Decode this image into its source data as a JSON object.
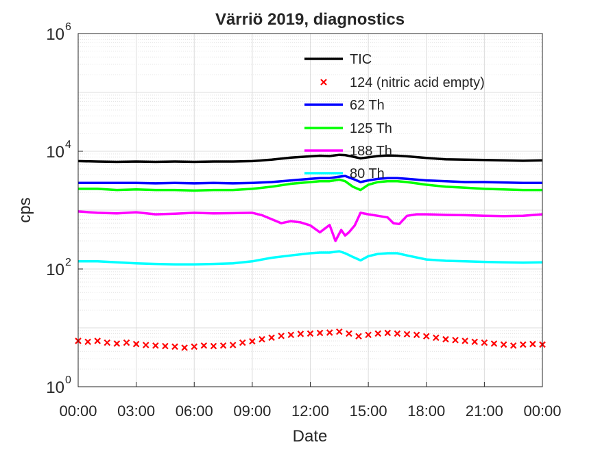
{
  "chart_data": {
    "type": "line",
    "title": "Värriö 2019, diagnostics",
    "xlabel": "Date",
    "ylabel": "cps",
    "yscale": "log",
    "ylim": [
      1,
      1000000
    ],
    "xlim": [
      0,
      24
    ],
    "grid": true,
    "legend_position": "top-right",
    "x_ticks": [
      {
        "pos": 0,
        "label": "00:00"
      },
      {
        "pos": 3,
        "label": "03:00"
      },
      {
        "pos": 6,
        "label": "06:00"
      },
      {
        "pos": 9,
        "label": "09:00"
      },
      {
        "pos": 12,
        "label": "12:00"
      },
      {
        "pos": 15,
        "label": "15:00"
      },
      {
        "pos": 18,
        "label": "18:00"
      },
      {
        "pos": 21,
        "label": "21:00"
      },
      {
        "pos": 24,
        "label": "00:00"
      }
    ],
    "y_ticks": [
      {
        "value": 1,
        "base": "10",
        "exp": "0"
      },
      {
        "value": 100,
        "base": "10",
        "exp": "2"
      },
      {
        "value": 10000,
        "base": "10",
        "exp": "4"
      },
      {
        "value": 1000000,
        "base": "10",
        "exp": "6"
      }
    ],
    "series": [
      {
        "name": "TIC",
        "color": "#000000",
        "style": "line",
        "x": [
          0,
          1,
          2,
          3,
          4,
          5,
          6,
          7,
          8,
          9,
          10,
          11,
          12,
          12.5,
          13,
          13.5,
          13.8,
          14.2,
          14.6,
          15,
          15.5,
          16,
          16.5,
          17,
          18,
          19,
          20,
          21,
          22,
          23,
          24
        ],
        "y": [
          6800,
          6700,
          6600,
          6700,
          6600,
          6700,
          6600,
          6700,
          6700,
          6800,
          7200,
          7800,
          8200,
          8400,
          8300,
          8700,
          8600,
          8100,
          7600,
          7900,
          8300,
          8500,
          8400,
          8200,
          7700,
          7300,
          7200,
          7100,
          7000,
          6900,
          7000
        ]
      },
      {
        "name": "124 (nitric acid empty)",
        "color": "#ff0000",
        "style": "marker",
        "x": [
          0,
          0.5,
          1,
          1.5,
          2,
          2.5,
          3,
          3.5,
          4,
          4.5,
          5,
          5.5,
          6,
          6.5,
          7,
          7.5,
          8,
          8.5,
          9,
          9.5,
          10,
          10.5,
          11,
          11.5,
          12,
          12.5,
          13,
          13.5,
          14,
          14.5,
          15,
          15.5,
          16,
          16.5,
          17,
          17.5,
          18,
          18.5,
          19,
          19.5,
          20,
          20.5,
          21,
          21.5,
          22,
          22.5,
          23,
          23.5,
          24
        ],
        "y": [
          6,
          5.8,
          6,
          5.6,
          5.4,
          5.6,
          5.3,
          5.1,
          5.0,
          4.9,
          4.8,
          4.6,
          4.8,
          5.0,
          4.9,
          5.0,
          5.1,
          5.6,
          5.9,
          6.4,
          6.8,
          7.3,
          7.6,
          7.9,
          8.0,
          8.2,
          8.3,
          8.6,
          8.0,
          7.2,
          7.6,
          8.0,
          8.2,
          8.0,
          7.8,
          7.6,
          7.2,
          6.8,
          6.4,
          6.2,
          6.0,
          5.8,
          5.6,
          5.4,
          5.2,
          5.0,
          5.2,
          5.3,
          5.2
        ]
      },
      {
        "name": "62 Th",
        "color": "#0000ff",
        "style": "line",
        "x": [
          0,
          1,
          2,
          3,
          4,
          5,
          6,
          7,
          8,
          9,
          10,
          11,
          12,
          12.5,
          13,
          13.5,
          13.8,
          14.2,
          14.6,
          15,
          15.5,
          16,
          16.5,
          17,
          18,
          19,
          20,
          21,
          22,
          23,
          24
        ],
        "y": [
          2900,
          2900,
          2900,
          2900,
          2850,
          2900,
          2850,
          2900,
          2850,
          2900,
          3000,
          3200,
          3400,
          3500,
          3500,
          3700,
          3800,
          3400,
          3000,
          3200,
          3400,
          3500,
          3500,
          3400,
          3200,
          3100,
          3000,
          3000,
          2950,
          2900,
          2900
        ]
      },
      {
        "name": "125 Th",
        "color": "#00ff00",
        "style": "line",
        "x": [
          0,
          1,
          2,
          3,
          4,
          5,
          6,
          7,
          8,
          9,
          10,
          11,
          12,
          12.5,
          13,
          13.5,
          13.8,
          14.2,
          14.6,
          15,
          15.5,
          16,
          16.5,
          17,
          18,
          19,
          20,
          21,
          22,
          23,
          24
        ],
        "y": [
          2300,
          2300,
          2200,
          2250,
          2200,
          2200,
          2150,
          2200,
          2200,
          2300,
          2500,
          2800,
          3000,
          3100,
          3100,
          3300,
          3100,
          2500,
          2200,
          2700,
          3000,
          3100,
          3100,
          3000,
          2700,
          2500,
          2400,
          2300,
          2250,
          2200,
          2200
        ]
      },
      {
        "name": "188 Th",
        "color": "#ff00ff",
        "style": "line",
        "x": [
          0,
          1,
          2,
          3,
          4,
          5,
          6,
          7,
          8,
          9,
          9.5,
          10,
          10.5,
          11,
          11.5,
          12,
          12.5,
          13,
          13.3,
          13.6,
          13.8,
          14.0,
          14.3,
          14.6,
          15,
          15.5,
          16,
          16.3,
          16.6,
          17,
          17.5,
          18,
          19,
          20,
          21,
          22,
          23,
          24
        ],
        "y": [
          950,
          900,
          880,
          920,
          850,
          870,
          900,
          880,
          890,
          900,
          820,
          700,
          600,
          650,
          620,
          550,
          420,
          560,
          300,
          460,
          370,
          420,
          550,
          900,
          850,
          800,
          750,
          600,
          580,
          800,
          850,
          850,
          830,
          820,
          800,
          790,
          800,
          850
        ]
      },
      {
        "name": "80 Th",
        "color": "#00ffff",
        "style": "line",
        "x": [
          0,
          1,
          2,
          3,
          4,
          5,
          6,
          7,
          8,
          9,
          10,
          11,
          12,
          12.5,
          13,
          13.5,
          13.8,
          14.2,
          14.6,
          15,
          15.5,
          16,
          16.5,
          17,
          18,
          19,
          20,
          21,
          22,
          23,
          24
        ],
        "y": [
          135,
          135,
          130,
          125,
          122,
          120,
          120,
          122,
          125,
          135,
          155,
          170,
          185,
          190,
          190,
          200,
          185,
          160,
          140,
          165,
          180,
          185,
          185,
          170,
          145,
          138,
          135,
          132,
          130,
          128,
          130
        ]
      }
    ]
  }
}
